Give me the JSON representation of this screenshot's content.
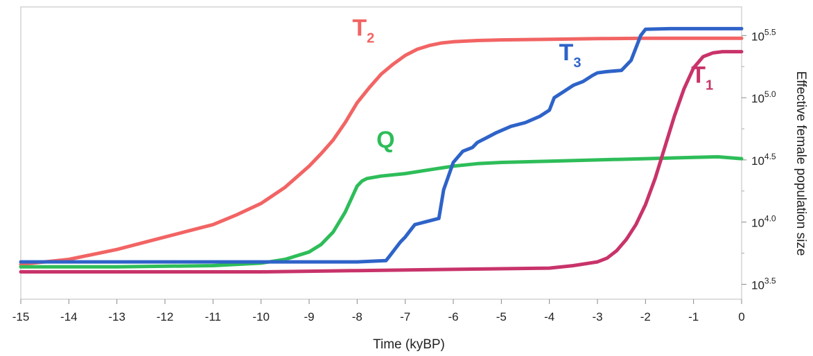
{
  "chart_data": {
    "type": "line",
    "xlabel": "Time (kyBP)",
    "ylabel": "Effective female population size",
    "xlim": [
      -15,
      0
    ],
    "ylim_log10": [
      3.38,
      5.73
    ],
    "y_scale": "log10",
    "x_ticks": [
      -15,
      -14,
      -13,
      -12,
      -11,
      -10,
      -9,
      -8,
      -7,
      -6,
      -5,
      -4,
      -3,
      -2,
      -1,
      0
    ],
    "y_ticks": [
      {
        "base": "10",
        "exp": "3.5",
        "log10": 3.5
      },
      {
        "base": "10",
        "exp": "4.0",
        "log10": 4.0
      },
      {
        "base": "10",
        "exp": "4.5",
        "log10": 4.5
      },
      {
        "base": "10",
        "exp": "5.0",
        "log10": 5.0
      },
      {
        "base": "10",
        "exp": "5.5",
        "log10": 5.5
      }
    ],
    "grid": false,
    "series": [
      {
        "name": "T2",
        "base": "T",
        "sub": "2",
        "color": "#f26464",
        "x": [
          -15,
          -14,
          -13,
          -12,
          -11.5,
          -11,
          -10.5,
          -10,
          -9.5,
          -9,
          -8.75,
          -8.5,
          -8.25,
          -8,
          -7.75,
          -7.5,
          -7.25,
          -7,
          -6.75,
          -6.5,
          -6.25,
          -6,
          -5.5,
          -5,
          -4,
          -3,
          -2,
          -1,
          0
        ],
        "log10": [
          3.66,
          3.7,
          3.78,
          3.88,
          3.93,
          3.98,
          4.06,
          4.15,
          4.28,
          4.45,
          4.55,
          4.66,
          4.8,
          4.96,
          5.08,
          5.19,
          5.27,
          5.34,
          5.39,
          5.42,
          5.44,
          5.45,
          5.46,
          5.465,
          5.47,
          5.475,
          5.478,
          5.478,
          5.478
        ]
      },
      {
        "name": "Q",
        "base": "Q",
        "sub": "",
        "color": "#2ebd59",
        "x": [
          -15,
          -13,
          -11,
          -10,
          -9.5,
          -9,
          -8.75,
          -8.5,
          -8.25,
          -8,
          -7.9,
          -7.8,
          -7.5,
          -7,
          -6.5,
          -6,
          -5.5,
          -5,
          -4,
          -3,
          -2,
          -1,
          -0.5,
          0
        ],
        "log10": [
          3.64,
          3.64,
          3.65,
          3.67,
          3.7,
          3.76,
          3.82,
          3.92,
          4.08,
          4.29,
          4.33,
          4.35,
          4.37,
          4.39,
          4.42,
          4.45,
          4.47,
          4.48,
          4.49,
          4.5,
          4.51,
          4.52,
          4.525,
          4.51
        ]
      },
      {
        "name": "T3",
        "base": "T",
        "sub": "3",
        "color": "#2e63c8",
        "x": [
          -15,
          -12,
          -10,
          -8,
          -7.4,
          -7.3,
          -7.2,
          -7.1,
          -7,
          -6.9,
          -6.8,
          -6.7,
          -6.6,
          -6.5,
          -6.3,
          -6.2,
          -6,
          -5.8,
          -5.6,
          -5.5,
          -5.3,
          -5.1,
          -4.8,
          -4.5,
          -4.2,
          -4,
          -3.9,
          -3.7,
          -3.5,
          -3.3,
          -3.1,
          -3,
          -2.8,
          -2.5,
          -2.3,
          -2.1,
          -2,
          -1.5,
          -1,
          -0.5,
          0
        ],
        "log10": [
          3.68,
          3.68,
          3.68,
          3.68,
          3.69,
          3.74,
          3.79,
          3.84,
          3.88,
          3.93,
          3.98,
          3.99,
          4.0,
          4.01,
          4.03,
          4.26,
          4.48,
          4.57,
          4.6,
          4.64,
          4.68,
          4.72,
          4.77,
          4.8,
          4.85,
          4.9,
          5.0,
          5.05,
          5.1,
          5.13,
          5.18,
          5.2,
          5.21,
          5.22,
          5.3,
          5.5,
          5.55,
          5.555,
          5.555,
          5.555,
          5.555
        ]
      },
      {
        "name": "T1",
        "base": "T",
        "sub": "1",
        "color": "#c8336a",
        "x": [
          -15,
          -12,
          -10,
          -8,
          -6,
          -5,
          -4,
          -3.5,
          -3,
          -2.8,
          -2.6,
          -2.4,
          -2.2,
          -2,
          -1.8,
          -1.6,
          -1.4,
          -1.2,
          -1,
          -0.8,
          -0.6,
          -0.4,
          -0.2,
          0
        ],
        "log10": [
          3.6,
          3.6,
          3.6,
          3.61,
          3.62,
          3.625,
          3.63,
          3.65,
          3.68,
          3.71,
          3.77,
          3.86,
          3.98,
          4.14,
          4.35,
          4.6,
          4.85,
          5.07,
          5.24,
          5.33,
          5.36,
          5.37,
          5.37,
          5.37
        ]
      }
    ]
  }
}
